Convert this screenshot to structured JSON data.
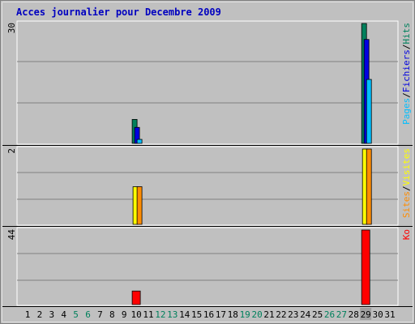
{
  "chart_data": [
    {
      "type": "bar",
      "title": "Acces journalier pour Decembre 2009",
      "panel": "hits-files-pages",
      "ymax_label": "30",
      "ylim": [
        0,
        30
      ],
      "legend_parts": [
        "Pages",
        "/",
        "Fichiers",
        "/",
        "Hits"
      ],
      "series": [
        {
          "name": "Hits",
          "color": "#00805C",
          "points": [
            [
              10,
              6
            ],
            [
              29,
              30
            ]
          ]
        },
        {
          "name": "Fichiers",
          "color": "#0000E0",
          "points": [
            [
              10,
              4
            ],
            [
              29,
              26
            ]
          ]
        },
        {
          "name": "Pages",
          "color": "#00BFFF",
          "points": [
            [
              10,
              1
            ],
            [
              29,
              16
            ]
          ]
        }
      ]
    },
    {
      "type": "bar",
      "panel": "visits-sites",
      "ymax_label": "2",
      "ylim": [
        0,
        2
      ],
      "legend_parts": [
        "Sites",
        "/",
        "Visites"
      ],
      "series": [
        {
          "name": "Visites",
          "color": "#FFFF00",
          "points": [
            [
              10,
              1
            ],
            [
              29,
              2
            ]
          ]
        },
        {
          "name": "Sites",
          "color": "#FF8C00",
          "points": [
            [
              10,
              1
            ],
            [
              29,
              2
            ]
          ]
        }
      ]
    },
    {
      "type": "bar",
      "panel": "ko",
      "ymax_label": "44",
      "ylim": [
        0,
        44
      ],
      "legend_parts": [
        "Ko"
      ],
      "series": [
        {
          "name": "Ko",
          "color": "#FF0000",
          "points": [
            [
              10,
              8
            ],
            [
              29,
              44
            ]
          ]
        }
      ]
    }
  ],
  "x_axis": {
    "days": [
      "1",
      "2",
      "3",
      "4",
      "5",
      "6",
      "7",
      "8",
      "9",
      "10",
      "11",
      "12",
      "13",
      "14",
      "15",
      "16",
      "17",
      "18",
      "19",
      "20",
      "21",
      "22",
      "23",
      "24",
      "25",
      "26",
      "27",
      "28",
      "29",
      "30",
      "31"
    ],
    "weekend_days": [
      "5",
      "6",
      "12",
      "13",
      "19",
      "20",
      "26",
      "27"
    ],
    "weekday_color": "#000000",
    "weekend_color": "#00805C",
    "highlight_day": "29"
  },
  "colors": {
    "title": "#0000C0",
    "plot_bg": "#C0C0C0",
    "grid": "#808080",
    "frame_bg": "#C0C0C0",
    "legend_pages": "#00BFFF",
    "legend_fichiers": "#0000E0",
    "legend_hits": "#00805C",
    "legend_sites": "#FF8C00",
    "legend_visites": "#FFFF00",
    "legend_ko": "#FF0000",
    "separator": "#000000"
  }
}
